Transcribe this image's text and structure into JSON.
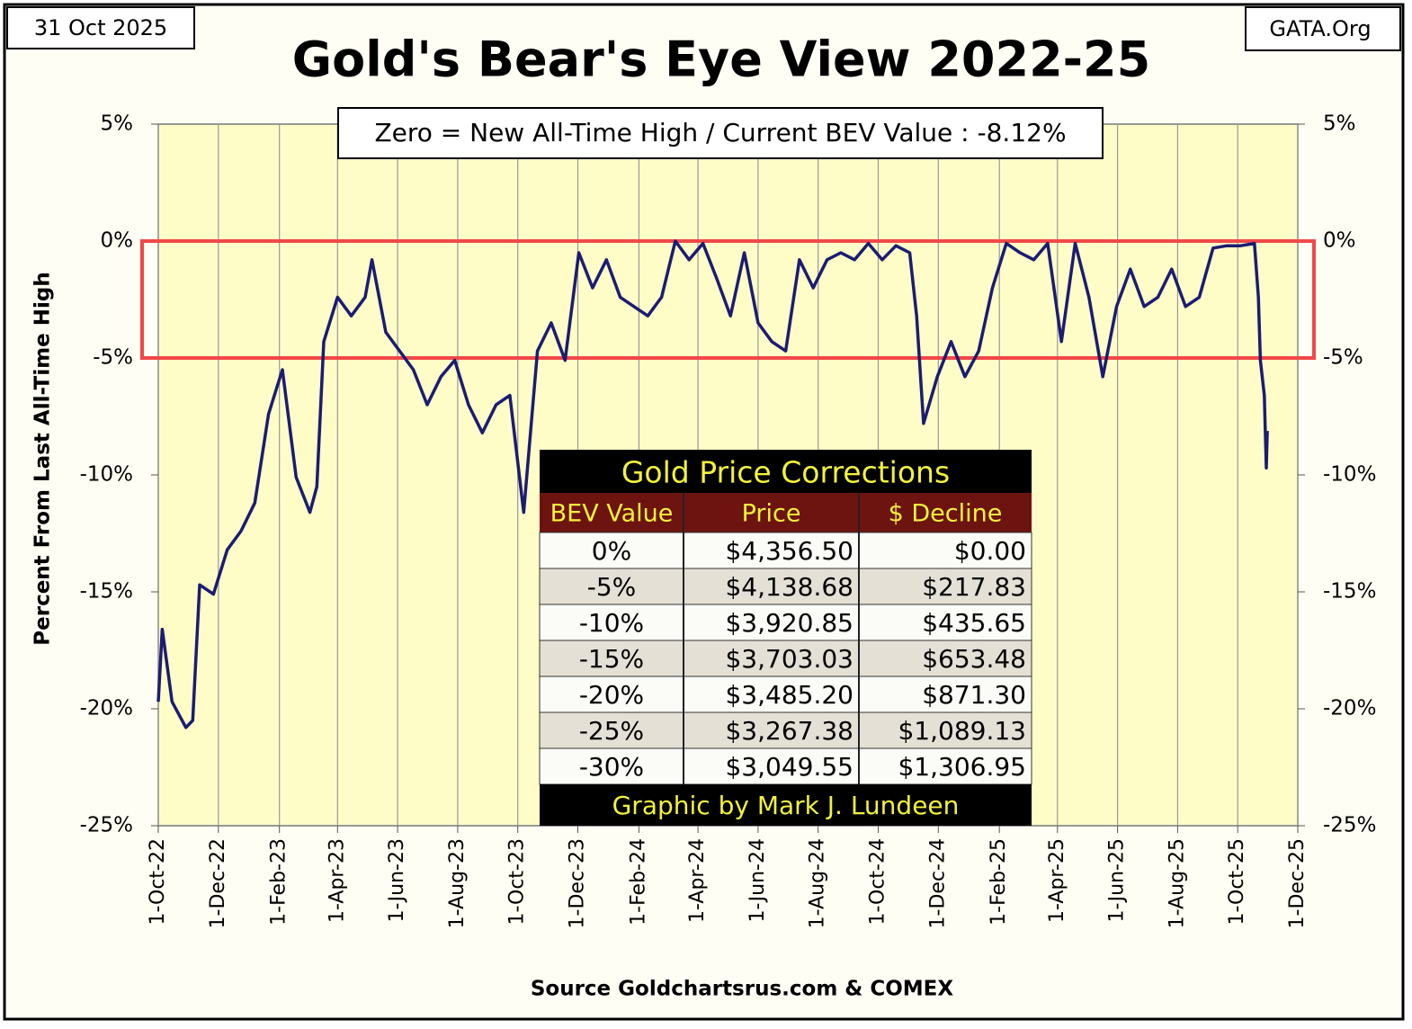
{
  "date_label": "31 Oct 2025",
  "site_label": "GATA.Org",
  "chart_data": {
    "type": "line",
    "title": "Gold's Bear's Eye View 2022-25",
    "annotation": "Zero = New All-Time High / Current  BEV Value : -8.12%",
    "ylabel": "Percent  From  Last  All-Time High",
    "source": "Source Goldchartsrus.com & COMEX",
    "band": {
      "values": [
        0,
        -5
      ],
      "color": "#f04848"
    },
    "xlim": [
      "2022-10-01",
      "2025-12-01"
    ],
    "xticks": [
      {
        "value": "2022-10-01",
        "label": "1-Oct-22"
      },
      {
        "value": "2022-12-01",
        "label": "1-Dec-22"
      },
      {
        "value": "2023-02-01",
        "label": "1-Feb-23"
      },
      {
        "value": "2023-04-01",
        "label": "1-Apr-23"
      },
      {
        "value": "2023-06-01",
        "label": "1-Jun-23"
      },
      {
        "value": "2023-08-01",
        "label": "1-Aug-23"
      },
      {
        "value": "2023-10-01",
        "label": "1-Oct-23"
      },
      {
        "value": "2023-12-01",
        "label": "1-Dec-23"
      },
      {
        "value": "2024-02-01",
        "label": "1-Feb-24"
      },
      {
        "value": "2024-04-01",
        "label": "1-Apr-24"
      },
      {
        "value": "2024-06-01",
        "label": "1-Jun-24"
      },
      {
        "value": "2024-08-01",
        "label": "1-Aug-24"
      },
      {
        "value": "2024-10-01",
        "label": "1-Oct-24"
      },
      {
        "value": "2024-12-01",
        "label": "1-Dec-24"
      },
      {
        "value": "2025-02-01",
        "label": "1-Feb-25"
      },
      {
        "value": "2025-04-01",
        "label": "1-Apr-25"
      },
      {
        "value": "2025-06-01",
        "label": "1-Jun-25"
      },
      {
        "value": "2025-08-01",
        "label": "1-Aug-25"
      },
      {
        "value": "2025-10-01",
        "label": "1-Oct-25"
      },
      {
        "value": "2025-12-01",
        "label": "1-Dec-25"
      }
    ],
    "ylim": [
      -25,
      5
    ],
    "yticks": [
      {
        "value": 5,
        "label": "5%"
      },
      {
        "value": 0,
        "label": "0%"
      },
      {
        "value": -5,
        "label": "-5%"
      },
      {
        "value": -10,
        "label": "-10%"
      },
      {
        "value": -15,
        "label": "-15%"
      },
      {
        "value": -20,
        "label": "-20%"
      },
      {
        "value": -25,
        "label": "-25%"
      }
    ],
    "grid": true,
    "plot_color": "#fefdc8",
    "x": [
      "2022-10-01",
      "2022-10-05",
      "2022-10-15",
      "2022-10-29",
      "2022-11-05",
      "2022-11-12",
      "2022-11-26",
      "2022-12-10",
      "2022-12-24",
      "2023-01-07",
      "2023-01-21",
      "2023-02-04",
      "2023-02-18",
      "2023-03-04",
      "2023-03-11",
      "2023-03-18",
      "2023-04-01",
      "2023-04-15",
      "2023-04-29",
      "2023-05-06",
      "2023-05-20",
      "2023-06-03",
      "2023-06-17",
      "2023-07-01",
      "2023-07-15",
      "2023-07-29",
      "2023-08-12",
      "2023-08-26",
      "2023-09-09",
      "2023-09-23",
      "2023-10-07",
      "2023-10-21",
      "2023-11-04",
      "2023-11-18",
      "2023-12-02",
      "2023-12-16",
      "2023-12-30",
      "2024-01-13",
      "2024-01-27",
      "2024-02-10",
      "2024-02-24",
      "2024-03-09",
      "2024-03-23",
      "2024-04-06",
      "2024-04-20",
      "2024-05-04",
      "2024-05-18",
      "2024-06-01",
      "2024-06-15",
      "2024-06-29",
      "2024-07-13",
      "2024-07-27",
      "2024-08-10",
      "2024-08-24",
      "2024-09-07",
      "2024-09-21",
      "2024-10-05",
      "2024-10-19",
      "2024-11-02",
      "2024-11-09",
      "2024-11-16",
      "2024-11-30",
      "2024-12-14",
      "2024-12-28",
      "2025-01-11",
      "2025-01-25",
      "2025-02-08",
      "2025-02-22",
      "2025-03-08",
      "2025-03-22",
      "2025-04-05",
      "2025-04-19",
      "2025-05-03",
      "2025-05-17",
      "2025-05-31",
      "2025-06-14",
      "2025-06-28",
      "2025-07-12",
      "2025-07-26",
      "2025-08-09",
      "2025-08-23",
      "2025-09-06",
      "2025-09-20",
      "2025-10-04",
      "2025-10-18",
      "2025-10-22",
      "2025-10-24",
      "2025-10-28",
      "2025-10-30",
      "2025-10-31"
    ],
    "series": [
      {
        "name": "BEV",
        "color": "#1c1c72",
        "values": [
          -19.7,
          -16.6,
          -19.7,
          -20.8,
          -20.5,
          -14.7,
          -15.1,
          -13.2,
          -12.4,
          -11.2,
          -7.4,
          -5.5,
          -10.1,
          -11.6,
          -10.5,
          -4.3,
          -2.4,
          -3.2,
          -2.4,
          -0.8,
          -3.9,
          -4.7,
          -5.5,
          -7.0,
          -5.8,
          -5.1,
          -7.0,
          -8.2,
          -7.0,
          -6.6,
          -11.6,
          -4.7,
          -3.5,
          -5.1,
          -0.5,
          -2.0,
          -0.8,
          -2.4,
          -2.8,
          -3.2,
          -2.4,
          0,
          -0.8,
          -0.1,
          -1.6,
          -3.2,
          -0.5,
          -3.5,
          -4.3,
          -4.7,
          -0.8,
          -2.0,
          -0.8,
          -0.5,
          -0.8,
          -0.1,
          -0.8,
          -0.2,
          -0.5,
          -3.2,
          -7.8,
          -5.8,
          -4.3,
          -5.8,
          -4.7,
          -2.0,
          -0.1,
          -0.5,
          -0.8,
          -0.1,
          -4.3,
          -0.1,
          -2.4,
          -5.8,
          -2.8,
          -1.2,
          -2.8,
          -2.4,
          -1.2,
          -2.8,
          -2.4,
          -0.3,
          -0.2,
          -0.2,
          -0.1,
          -2.4,
          -5.1,
          -6.6,
          -9.7,
          -8.12
        ]
      }
    ]
  },
  "table": {
    "title": "Gold Price Corrections",
    "headers": [
      "BEV Value",
      "Price",
      "$ Decline"
    ],
    "rows": [
      [
        "0%",
        "$4,356.50",
        "$0.00"
      ],
      [
        "-5%",
        "$4,138.68",
        "$217.83"
      ],
      [
        "-10%",
        "$3,920.85",
        "$435.65"
      ],
      [
        "-15%",
        "$3,703.03",
        "$653.48"
      ],
      [
        "-20%",
        "$3,485.20",
        "$871.30"
      ],
      [
        "-25%",
        "$3,267.38",
        "$1,089.13"
      ],
      [
        "-30%",
        "$3,049.55",
        "$1,306.95"
      ]
    ],
    "footer": "Graphic by Mark J. Lundeen"
  }
}
